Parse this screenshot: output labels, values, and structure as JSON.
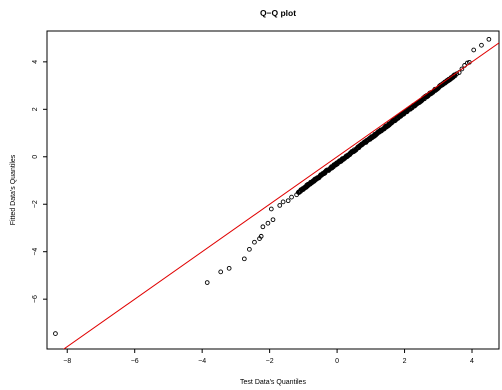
{
  "chart_data": {
    "type": "scatter",
    "title": "Q−Q plot",
    "xlabel": "Test Data's Quantiles",
    "ylabel": "Fitted Data's Quantiles",
    "xlim": [
      -8.6,
      4.8
    ],
    "ylim": [
      -8.1,
      5.3
    ],
    "x_ticks": [
      -8,
      -6,
      -4,
      -2,
      0,
      2,
      4
    ],
    "x_tick_labels": [
      "−8",
      "−6",
      "−4",
      "−2",
      "0",
      "2",
      "4"
    ],
    "y_ticks": [
      -6,
      -4,
      -2,
      0,
      2,
      4
    ],
    "y_tick_labels": [
      "−6",
      "−4",
      "−2",
      "0",
      "2",
      "4"
    ],
    "grid": false,
    "reference_line": {
      "color": "#e00000",
      "intercept": 0.0,
      "slope": 1.0
    },
    "point_color": "#000000",
    "outliers": [
      [
        -8.35,
        -7.45
      ],
      [
        -3.85,
        -5.3
      ],
      [
        -3.45,
        -4.85
      ],
      [
        -3.2,
        -4.7
      ],
      [
        -2.75,
        -4.3
      ],
      [
        -2.6,
        -3.9
      ],
      [
        -2.45,
        -3.6
      ],
      [
        -2.3,
        -3.45
      ],
      [
        -2.25,
        -3.35
      ],
      [
        -2.2,
        -2.95
      ],
      [
        -2.05,
        -2.8
      ],
      [
        -1.9,
        -2.65
      ],
      [
        -1.95,
        -2.2
      ],
      [
        -1.7,
        -2.05
      ],
      [
        -1.6,
        -1.9
      ],
      [
        -1.45,
        -1.85
      ],
      [
        -1.35,
        -1.7
      ],
      [
        -1.2,
        -1.6
      ],
      [
        3.55,
        3.5
      ],
      [
        3.62,
        3.55
      ],
      [
        3.7,
        3.7
      ],
      [
        3.78,
        3.85
      ],
      [
        3.86,
        3.95
      ],
      [
        3.92,
        3.98
      ],
      [
        4.05,
        4.5
      ],
      [
        4.28,
        4.7
      ],
      [
        4.5,
        4.95
      ]
    ],
    "bulk": {
      "x_range": [
        -1.15,
        3.5
      ],
      "y_range": [
        -1.5,
        3.45
      ],
      "note": ""
    }
  }
}
